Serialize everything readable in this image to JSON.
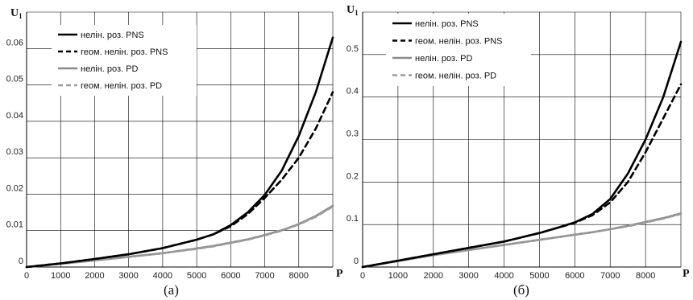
{
  "chart_data": [
    {
      "type": "line",
      "caption": "(а)",
      "xlabel": "P",
      "ylabel": "U",
      "ylabel_sub": "1",
      "xlim": [
        0,
        9000
      ],
      "ylim": [
        0,
        0.07
      ],
      "xticks": [
        "0",
        "1000",
        "2000",
        "3000",
        "4000",
        "5000",
        "6000",
        "7000",
        "8000"
      ],
      "yticks": [
        "0",
        "0.01",
        "0.02",
        "0.03",
        "0.04",
        "0.05",
        "0.06"
      ],
      "grid": true,
      "legend_position": "top-left",
      "x": [
        0,
        1000,
        2000,
        3000,
        4000,
        5000,
        5500,
        6000,
        6500,
        7000,
        7500,
        8000,
        8500,
        9000
      ],
      "series": [
        {
          "name": "нелін. роз. PNS",
          "color": "#000000",
          "dash": "solid",
          "values": [
            0,
            0.001,
            0.0022,
            0.0035,
            0.0052,
            0.0075,
            0.009,
            0.0115,
            0.015,
            0.0198,
            0.0265,
            0.036,
            0.048,
            0.063
          ]
        },
        {
          "name": "геом. нелін. роз. PNS",
          "color": "#000000",
          "dash": "dashed",
          "values": [
            0,
            0.001,
            0.0022,
            0.0035,
            0.0052,
            0.0075,
            0.009,
            0.0112,
            0.0145,
            0.019,
            0.024,
            0.03,
            0.038,
            0.048
          ]
        },
        {
          "name": "нелін. роз. PD",
          "color": "#8a8a8a",
          "dash": "solid",
          "values": [
            0,
            0.0009,
            0.0018,
            0.0028,
            0.0038,
            0.0051,
            0.0058,
            0.0067,
            0.0076,
            0.0088,
            0.0101,
            0.0118,
            0.014,
            0.0168
          ]
        },
        {
          "name": "геом. нелін. роз. PD",
          "color": "#9a9a9a",
          "dash": "dashed",
          "values": [
            0,
            0.0009,
            0.0018,
            0.0028,
            0.0038,
            0.005,
            0.0057,
            0.0066,
            0.0075,
            0.0087,
            0.01,
            0.0117,
            0.0138,
            0.0166
          ]
        }
      ]
    },
    {
      "type": "line",
      "caption": "(б)",
      "xlabel": "P",
      "ylabel": "U",
      "ylabel_sub": "1",
      "xlim": [
        0,
        9000
      ],
      "ylim": [
        0,
        0.6
      ],
      "xticks": [
        "0",
        "1000",
        "2000",
        "3000",
        "4000",
        "5000",
        "6000",
        "7000",
        "8000"
      ],
      "yticks": [
        "0",
        "0.1",
        "0.2",
        "0.3",
        "0.4",
        "0.5"
      ],
      "grid": true,
      "legend_position": "top-left",
      "x": [
        0,
        1000,
        2000,
        3000,
        4000,
        5000,
        5500,
        6000,
        6500,
        7000,
        7500,
        8000,
        8500,
        9000
      ],
      "series": [
        {
          "name": "нелін. роз. PNS",
          "color": "#000000",
          "dash": "solid",
          "values": [
            0,
            0.015,
            0.03,
            0.045,
            0.06,
            0.08,
            0.092,
            0.105,
            0.125,
            0.16,
            0.22,
            0.3,
            0.4,
            0.53
          ]
        },
        {
          "name": "геом. нелін. роз. PNS",
          "color": "#000000",
          "dash": "dashed",
          "values": [
            0,
            0.015,
            0.03,
            0.045,
            0.06,
            0.08,
            0.092,
            0.104,
            0.122,
            0.152,
            0.2,
            0.27,
            0.35,
            0.43
          ]
        },
        {
          "name": "нелін. роз. PD",
          "color": "#8a8a8a",
          "dash": "solid",
          "values": [
            0,
            0.014,
            0.028,
            0.04,
            0.052,
            0.064,
            0.07,
            0.076,
            0.082,
            0.089,
            0.097,
            0.106,
            0.115,
            0.126
          ]
        },
        {
          "name": "геом. нелін. роз. PD",
          "color": "#9a9a9a",
          "dash": "dashed",
          "values": [
            0,
            0.014,
            0.028,
            0.04,
            0.052,
            0.064,
            0.07,
            0.076,
            0.082,
            0.089,
            0.096,
            0.105,
            0.114,
            0.125
          ]
        }
      ]
    }
  ]
}
